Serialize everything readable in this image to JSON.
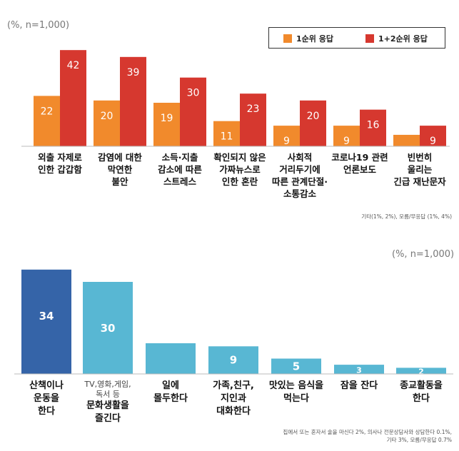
{
  "chart_data": [
    {
      "type": "bar",
      "unit_label": "(%, n=1,000)",
      "legend": [
        "1순위 응답",
        "1+2순위 응답"
      ],
      "categories": [
        [
          "외출 자제로",
          "인한 갑갑함"
        ],
        [
          "감염에 대한",
          "막연한",
          "불안"
        ],
        [
          "소득·지출",
          "감소에 따른",
          "스트레스"
        ],
        [
          "확인되지 않은",
          "가짜뉴스로",
          "인한 혼란"
        ],
        [
          "사회적",
          "거리두기에",
          "따른 관계단절·",
          "소통감소"
        ],
        [
          "코로나19 관련",
          "언론보도"
        ],
        [
          "빈번히",
          "울리는",
          "긴급 재난문자"
        ]
      ],
      "series": [
        {
          "name": "1순위 응답",
          "color": "#F18A2C",
          "values": [
            22,
            20,
            19,
            11,
            9,
            9,
            5
          ]
        },
        {
          "name": "1+2순위 응답",
          "color": "#D6382F",
          "values": [
            42,
            39,
            30,
            23,
            20,
            16,
            9
          ]
        }
      ],
      "note": "기타(1%, 2%), 모름/무응답 (1%, 4%)",
      "ylim": [
        0,
        45
      ]
    },
    {
      "type": "bar",
      "unit_label": "(%, n=1,000)",
      "categories": [
        {
          "small": [],
          "main": [
            "산책이나",
            "운동을",
            "한다"
          ]
        },
        {
          "small": [
            "TV,영화,게임,",
            "독서 등"
          ],
          "main": [
            "문화생활을",
            "즐긴다"
          ]
        },
        {
          "small": [],
          "main": [
            "일에",
            "몰두한다"
          ]
        },
        {
          "small": [],
          "main": [
            "가족,친구,",
            "지인과",
            "대화한다"
          ]
        },
        {
          "small": [],
          "main": [
            "맛있는 음식을",
            "먹는다"
          ]
        },
        {
          "small": [],
          "main": [
            "잠을 잔다"
          ]
        },
        {
          "small": [],
          "main": [
            "종교활동을",
            "한다"
          ]
        }
      ],
      "values": [
        34,
        30,
        10,
        9,
        5,
        3,
        2
      ],
      "colors": [
        "#3564A8",
        "#58B7D3",
        "#58B7D3",
        "#58B7D3",
        "#58B7D3",
        "#58B7D3",
        "#58B7D3"
      ],
      "note_lines": [
        "집에서 또는 혼자서 술을 마신다 2%, 의사나 전문상담사와 상담한다 0.1%,",
        "기타 3%, 모름/무응답 0.7%"
      ],
      "ylim": [
        0,
        36
      ]
    }
  ]
}
